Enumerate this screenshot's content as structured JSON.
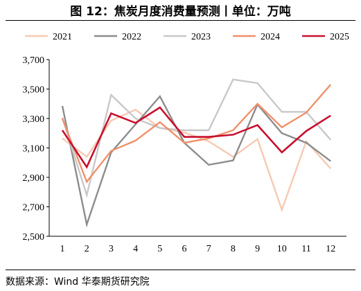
{
  "chart_data": {
    "type": "line",
    "title": "图 12：焦炭月度消费量预测丨单位：万吨",
    "xlabel": "",
    "ylabel": "",
    "x": [
      "1",
      "2",
      "3",
      "4",
      "5",
      "6",
      "7",
      "8",
      "9",
      "10",
      "11",
      "12"
    ],
    "ylim": [
      2500,
      3700
    ],
    "yticks": [
      2500,
      2700,
      2900,
      3100,
      3300,
      3500,
      3700
    ],
    "ytick_labels": [
      "2,500",
      "2,700",
      "2,900",
      "3,100",
      "3,300",
      "3,500",
      "3,700"
    ],
    "grid": false,
    "legend_position": "top",
    "series": [
      {
        "name": "2021",
        "color": "#f6c9b3",
        "values": [
          3165,
          3040,
          3285,
          3360,
          3235,
          3205,
          3145,
          3040,
          3160,
          2680,
          3145,
          2960
        ]
      },
      {
        "name": "2022",
        "color": "#8c8c8c",
        "values": [
          3385,
          2580,
          3070,
          3260,
          3450,
          3135,
          2985,
          3015,
          3395,
          3200,
          3135,
          3010
        ]
      },
      {
        "name": "2023",
        "color": "#c8c8c8",
        "values": [
          3305,
          2780,
          3460,
          3300,
          3235,
          3220,
          3220,
          3565,
          3540,
          3345,
          3345,
          3155
        ]
      },
      {
        "name": "2024",
        "color": "#f0906a",
        "values": [
          3300,
          2870,
          3080,
          3150,
          3275,
          3135,
          3165,
          3220,
          3400,
          3240,
          3340,
          3530
        ]
      },
      {
        "name": "2025",
        "color": "#c8102e",
        "values": [
          3220,
          2970,
          3335,
          3270,
          3375,
          3175,
          3175,
          3190,
          3255,
          3070,
          3215,
          3320
        ]
      }
    ]
  },
  "source": "数据来源：Wind  华泰期货研究院"
}
